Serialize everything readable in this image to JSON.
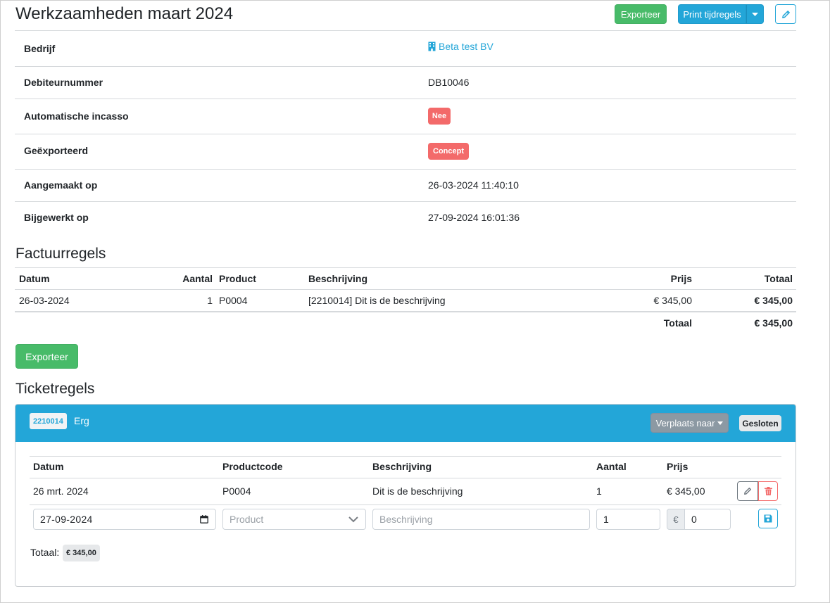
{
  "page": {
    "title": "Werkzaamheden maart 2024",
    "export_button": "Exporteer",
    "print_button": "Print tijdregels"
  },
  "details": {
    "company_label": "Bedrijf",
    "company_value": "Beta test BV",
    "debtor_label": "Debiteurnummer",
    "debtor_value": "DB10046",
    "direct_debit_label": "Automatische incasso",
    "direct_debit_value": "Nee",
    "exported_label": "Geëxporteerd",
    "exported_value": "Concept",
    "created_label": "Aangemaakt op",
    "created_value": "26-03-2024 11:40:10",
    "updated_label": "Bijgewerkt op",
    "updated_value": "27-09-2024 16:01:36"
  },
  "invoice": {
    "heading": "Factuurregels",
    "columns": {
      "date": "Datum",
      "quantity": "Aantal",
      "product": "Product",
      "description": "Beschrijving",
      "price": "Prijs",
      "total": "Totaal"
    },
    "rows": [
      {
        "date": "26-03-2024",
        "quantity": "1",
        "product": "P0004",
        "description": "[2210014] Dit is de beschrijving",
        "price": "€ 345,00",
        "total": "€ 345,00"
      }
    ],
    "footer_label": "Totaal",
    "footer_total": "€ 345,00",
    "export_button": "Exporteer"
  },
  "tickets": {
    "heading": "Ticketregels",
    "ticket_number": "2210014",
    "ticket_title": "Erg",
    "move_button": "Verplaats naar",
    "status_badge": "Gesloten",
    "columns": {
      "date": "Datum",
      "product_code": "Productcode",
      "description": "Beschrijving",
      "quantity": "Aantal",
      "price": "Prijs"
    },
    "rows": [
      {
        "date": "26 mrt. 2024",
        "product_code": "P0004",
        "description": "Dit is de beschrijving",
        "quantity": "1",
        "price": "€ 345,00"
      }
    ],
    "new_row": {
      "date_value": "27-09-2024",
      "product_placeholder": "Product",
      "description_placeholder": "Beschrijving",
      "quantity_value": "1",
      "currency_symbol": "€",
      "price_value": "0"
    },
    "total_label": "Totaal:",
    "total_value": "€ 345,00"
  },
  "colors": {
    "primary": "#23a6d8",
    "success": "#48bb69",
    "danger": "#f36a6a",
    "secondary": "#8c99a3"
  },
  "icons": [
    "pencil-icon",
    "caret-down-icon",
    "building-icon",
    "calendar-icon",
    "chevron-down-icon",
    "trash-icon",
    "save-icon"
  ]
}
